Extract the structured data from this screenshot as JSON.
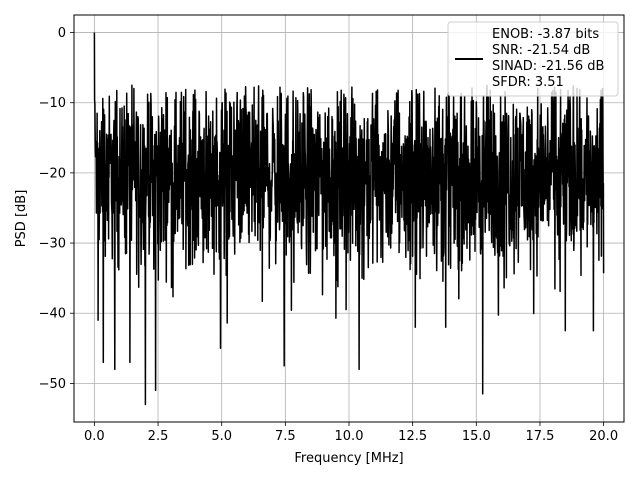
{
  "chart_data": {
    "type": "line",
    "title": "",
    "xlabel": "Frequency [MHz]",
    "ylabel": "PSD [dB]",
    "xlim": [
      -0.8,
      20.8
    ],
    "ylim": [
      -55.5,
      2.5
    ],
    "xticks": [
      0.0,
      2.5,
      5.0,
      7.5,
      10.0,
      12.5,
      15.0,
      17.5,
      20.0
    ],
    "xtick_labels": [
      "0.0",
      "2.5",
      "5.0",
      "7.5",
      "10.0",
      "12.5",
      "15.0",
      "17.5",
      "20.0"
    ],
    "yticks": [
      0,
      -10,
      -20,
      -30,
      -40,
      -50
    ],
    "ytick_labels": [
      "0",
      "−10",
      "−20",
      "−30",
      "−40",
      "−50"
    ],
    "grid": true,
    "legend_position": "top-right",
    "legend": [
      "ENOB: -3.87 bits",
      "SNR: -21.54 dB",
      "SINAD: -21.56 dB",
      "SFDR: 3.51"
    ],
    "series": [
      {
        "color": "#000000",
        "x_range": [
          0.0,
          20.0
        ],
        "approx_points": 2048,
        "peak": {
          "x": 0.0,
          "y": 0.0
        },
        "notable_minima": [
          {
            "x": 0.15,
            "y": -41
          },
          {
            "x": 0.35,
            "y": -47
          },
          {
            "x": 0.8,
            "y": -48
          },
          {
            "x": 1.4,
            "y": -47
          },
          {
            "x": 2.0,
            "y": -53
          },
          {
            "x": 2.4,
            "y": -51
          },
          {
            "x": 4.95,
            "y": -45
          },
          {
            "x": 7.45,
            "y": -47.5
          },
          {
            "x": 10.4,
            "y": -48
          },
          {
            "x": 12.6,
            "y": -42
          },
          {
            "x": 13.8,
            "y": -42
          },
          {
            "x": 15.25,
            "y": -51.5
          },
          {
            "x": 18.5,
            "y": -42.5
          },
          {
            "x": 19.6,
            "y": -42.5
          }
        ],
        "typical_band": [
          -33,
          -8
        ],
        "median": -20
      }
    ]
  }
}
